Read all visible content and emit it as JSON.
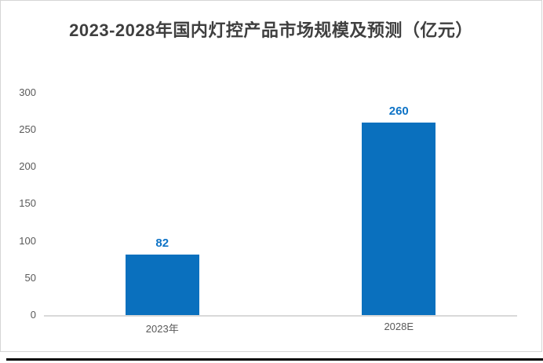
{
  "chart_data": {
    "type": "bar",
    "title": "2023-2028年国内灯控产品市场规模及预测（亿元）",
    "categories": [
      "2023年",
      "2028E"
    ],
    "values": [
      82,
      260
    ],
    "yticks": [
      300,
      250,
      200,
      150,
      100,
      50,
      0
    ],
    "ylim": [
      0,
      300
    ],
    "xlabel": "",
    "ylabel": "",
    "grid": false,
    "legend": "none",
    "colors": {
      "bar": "#0a70be",
      "value_label": "#0e73c6",
      "axis_label": "#595959",
      "title": "#3f3f3f",
      "axis_line": "#d9d9d9",
      "card_border": "#d5d5d5",
      "bottom_rule": "#000000"
    }
  }
}
